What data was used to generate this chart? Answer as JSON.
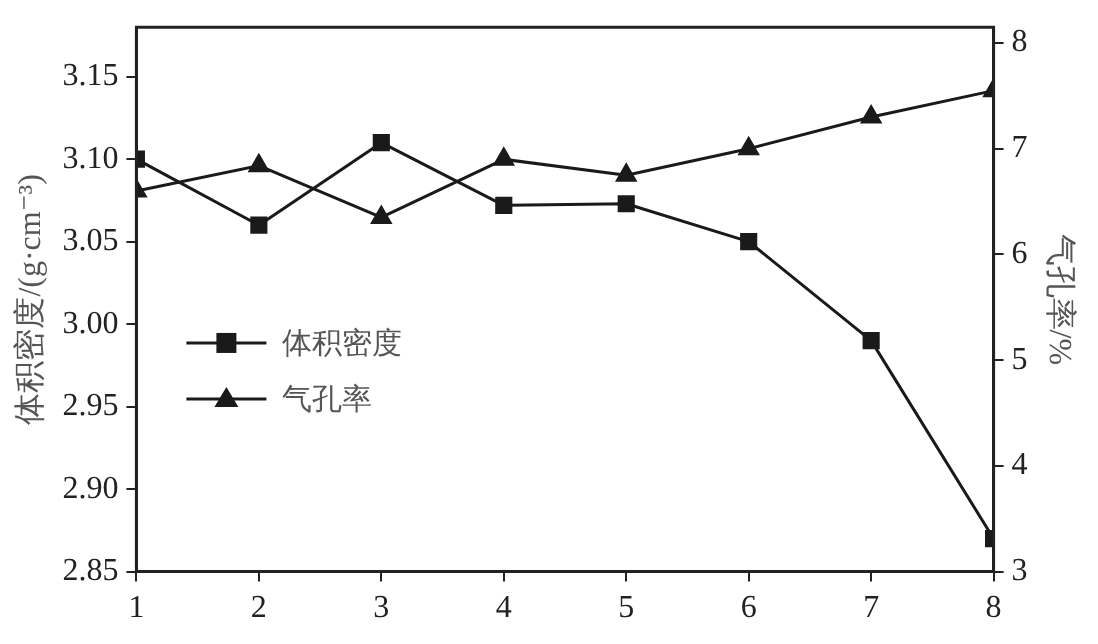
{
  "chart_data": {
    "type": "line",
    "x": [
      1,
      2,
      3,
      4,
      5,
      6,
      7,
      8
    ],
    "xlim": [
      1,
      8
    ],
    "xticks": [
      1,
      2,
      3,
      4,
      5,
      6,
      7,
      8
    ],
    "ylabel": "体积密度/(g·cm⁻³)",
    "y2label": "气孔率/%",
    "ylim": [
      2.85,
      3.18
    ],
    "yticks": [
      {
        "value": 2.85,
        "label": "2.85"
      },
      {
        "value": 2.9,
        "label": "2.90"
      },
      {
        "value": 2.95,
        "label": "2.95"
      },
      {
        "value": 3.0,
        "label": "3.00"
      },
      {
        "value": 3.05,
        "label": "3.05"
      },
      {
        "value": 3.1,
        "label": "3.10"
      },
      {
        "value": 3.15,
        "label": "3.15"
      }
    ],
    "y2lim": [
      3,
      8.15
    ],
    "y2ticks": [
      3,
      4,
      5,
      6,
      7,
      8
    ],
    "series": [
      {
        "name": "体积密度",
        "color": "#1a1a1a",
        "marker": "square",
        "values": [
          3.1,
          3.06,
          3.11,
          3.072,
          3.073,
          3.05,
          2.99,
          2.87
        ]
      },
      {
        "name": "气孔率",
        "color": "#1a1a1a",
        "marker": "triangle",
        "axis": "y2",
        "values": [
          6.6,
          6.84,
          6.35,
          6.9,
          6.75,
          7.0,
          7.3,
          7.55
        ]
      }
    ],
    "legend": "left",
    "grid": false
  }
}
